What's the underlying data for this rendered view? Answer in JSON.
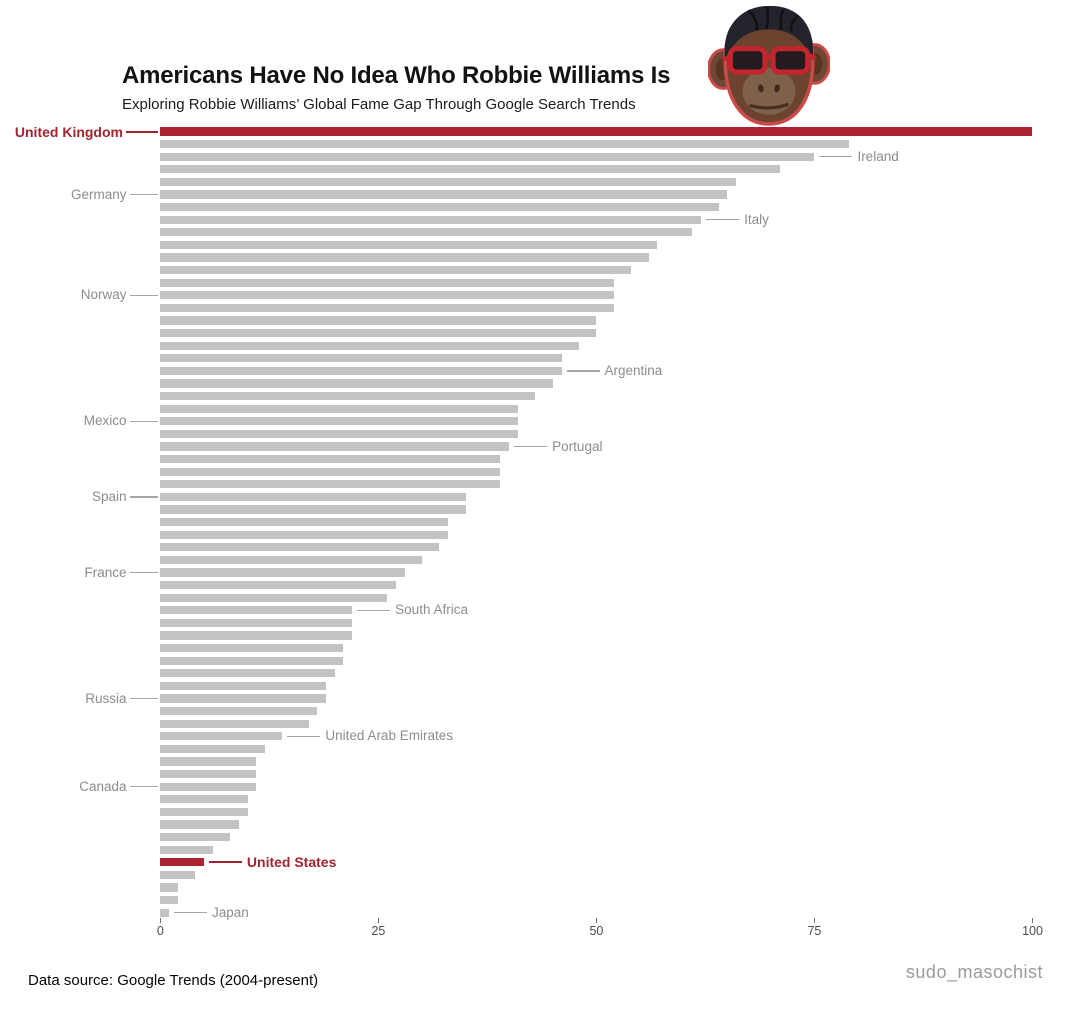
{
  "header": {
    "title": "Americans Have No Idea Who Robbie Williams Is",
    "subtitle": "Exploring Robbie Williams’ Global Fame Gap Through Google Search Trends"
  },
  "logo": {
    "icon": "monkey-sticker-icon"
  },
  "footer": {
    "source": "Data source: Google Trends (2004-present)",
    "watermark": "sudo_masochist"
  },
  "chart_data": {
    "type": "bar",
    "orientation": "horizontal",
    "title": "Americans Have No Idea Who Robbie Williams Is",
    "xlabel": "",
    "ylabel": "",
    "xlim": [
      0,
      100
    ],
    "xticks": [
      "0",
      "25",
      "50",
      "75",
      "100"
    ],
    "grid": false,
    "bar_color": "#C3C3C3",
    "highlight_color": "#AC2433",
    "label_color": "#8d8d8d",
    "highlight_label_color": "#A22430",
    "bars": [
      {
        "country": "United Kingdom",
        "value": 100,
        "highlight": true,
        "side": "left"
      },
      {
        "country": null,
        "value": 79
      },
      {
        "country": "Ireland",
        "value": 75,
        "side": "right"
      },
      {
        "country": null,
        "value": 71
      },
      {
        "country": null,
        "value": 66
      },
      {
        "country": "Germany",
        "value": 65,
        "side": "left"
      },
      {
        "country": null,
        "value": 64
      },
      {
        "country": "Italy",
        "value": 62,
        "side": "right"
      },
      {
        "country": null,
        "value": 61
      },
      {
        "country": null,
        "value": 57
      },
      {
        "country": null,
        "value": 56
      },
      {
        "country": null,
        "value": 54
      },
      {
        "country": null,
        "value": 52
      },
      {
        "country": "Norway",
        "value": 52,
        "side": "left"
      },
      {
        "country": null,
        "value": 52
      },
      {
        "country": null,
        "value": 50
      },
      {
        "country": null,
        "value": 50
      },
      {
        "country": null,
        "value": 48
      },
      {
        "country": null,
        "value": 46
      },
      {
        "country": "Argentina",
        "value": 46,
        "side": "right"
      },
      {
        "country": null,
        "value": 45
      },
      {
        "country": null,
        "value": 43
      },
      {
        "country": null,
        "value": 41
      },
      {
        "country": "Mexico",
        "value": 41,
        "side": "left"
      },
      {
        "country": null,
        "value": 41
      },
      {
        "country": "Portugal",
        "value": 40,
        "side": "right"
      },
      {
        "country": null,
        "value": 39
      },
      {
        "country": null,
        "value": 39
      },
      {
        "country": null,
        "value": 39
      },
      {
        "country": "Spain",
        "value": 35,
        "side": "left"
      },
      {
        "country": null,
        "value": 35
      },
      {
        "country": null,
        "value": 33
      },
      {
        "country": null,
        "value": 33
      },
      {
        "country": null,
        "value": 32
      },
      {
        "country": null,
        "value": 30
      },
      {
        "country": "France",
        "value": 28,
        "side": "left"
      },
      {
        "country": null,
        "value": 27
      },
      {
        "country": null,
        "value": 26
      },
      {
        "country": "South Africa",
        "value": 22,
        "side": "right"
      },
      {
        "country": null,
        "value": 22
      },
      {
        "country": null,
        "value": 22
      },
      {
        "country": null,
        "value": 21
      },
      {
        "country": null,
        "value": 21
      },
      {
        "country": null,
        "value": 20
      },
      {
        "country": null,
        "value": 19
      },
      {
        "country": "Russia",
        "value": 19,
        "side": "left"
      },
      {
        "country": null,
        "value": 18
      },
      {
        "country": null,
        "value": 17
      },
      {
        "country": "United Arab Emirates",
        "value": 14,
        "side": "right"
      },
      {
        "country": null,
        "value": 12
      },
      {
        "country": null,
        "value": 11
      },
      {
        "country": null,
        "value": 11
      },
      {
        "country": "Canada",
        "value": 11,
        "side": "left"
      },
      {
        "country": null,
        "value": 10
      },
      {
        "country": null,
        "value": 10
      },
      {
        "country": null,
        "value": 9
      },
      {
        "country": null,
        "value": 8
      },
      {
        "country": null,
        "value": 6
      },
      {
        "country": "United States",
        "value": 5,
        "highlight": true,
        "side": "right"
      },
      {
        "country": null,
        "value": 4
      },
      {
        "country": null,
        "value": 2
      },
      {
        "country": null,
        "value": 2
      },
      {
        "country": "Japan",
        "value": 1,
        "side": "right"
      }
    ]
  }
}
